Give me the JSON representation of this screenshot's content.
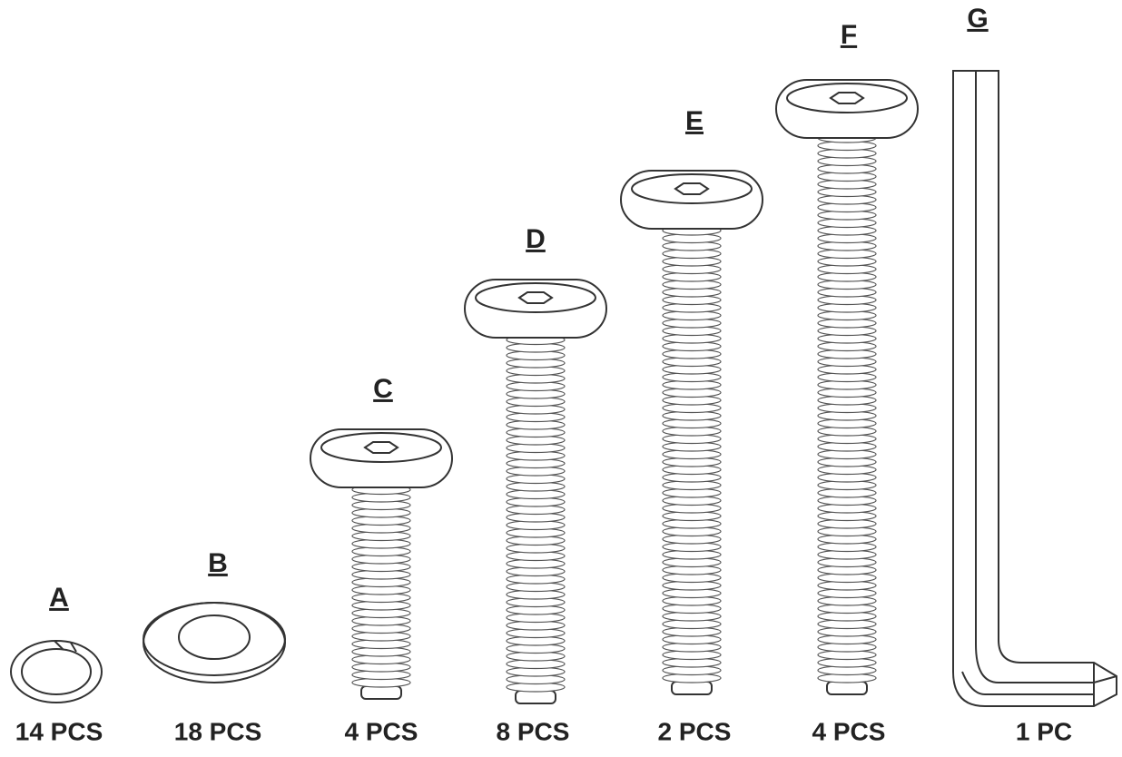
{
  "parts": [
    {
      "label": "A",
      "quantity": "14 PCS"
    },
    {
      "label": "B",
      "quantity": "18 PCS"
    },
    {
      "label": "C",
      "quantity": "4 PCS"
    },
    {
      "label": "D",
      "quantity": "8 PCS"
    },
    {
      "label": "E",
      "quantity": "2 PCS"
    },
    {
      "label": "F",
      "quantity": "4 PCS"
    },
    {
      "label": "G",
      "quantity": "1 PC"
    }
  ]
}
